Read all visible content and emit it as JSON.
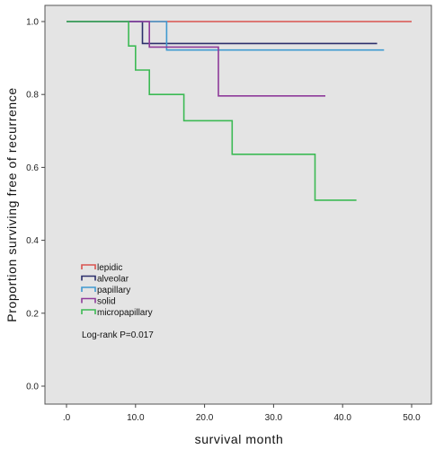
{
  "chart_data": {
    "type": "line",
    "subtype": "kaplan-meier step survival",
    "xlabel": "survival month",
    "ylabel": "Proportion surviving free of recurrence",
    "xlim": [
      0,
      50
    ],
    "ylim": [
      0,
      1.0
    ],
    "x_ticks": [
      ".0",
      "10.0",
      "20.0",
      "30.0",
      "40.0",
      "50.0"
    ],
    "y_ticks": [
      "0.0",
      "0.2",
      "0.4",
      "0.6",
      "0.8",
      "1.0"
    ],
    "grid": false,
    "legend_position": "lower-left",
    "background_color": "#e4e4e4",
    "series": [
      {
        "name": "lepidic",
        "color": "#d9534f",
        "points": [
          [
            0,
            1.0
          ],
          [
            50,
            1.0
          ]
        ]
      },
      {
        "name": "alveolar",
        "color": "#2c2f6b",
        "points": [
          [
            0,
            1.0
          ],
          [
            11,
            1.0
          ],
          [
            11,
            0.94
          ],
          [
            45,
            0.94
          ]
        ]
      },
      {
        "name": "papillary",
        "color": "#3f9ad0",
        "points": [
          [
            0,
            1.0
          ],
          [
            14.5,
            1.0
          ],
          [
            14.5,
            0.922
          ],
          [
            46,
            0.922
          ]
        ]
      },
      {
        "name": "solid",
        "color": "#8e3a9a",
        "points": [
          [
            0,
            1.0
          ],
          [
            12,
            1.0
          ],
          [
            12,
            0.93
          ],
          [
            22,
            0.93
          ],
          [
            22,
            0.796
          ],
          [
            37.5,
            0.796
          ]
        ]
      },
      {
        "name": "micropapillary",
        "color": "#3cba54",
        "points": [
          [
            0,
            1.0
          ],
          [
            9,
            1.0
          ],
          [
            9,
            0.933
          ],
          [
            10,
            0.933
          ],
          [
            10,
            0.867
          ],
          [
            12,
            0.867
          ],
          [
            12,
            0.8
          ],
          [
            17,
            0.8
          ],
          [
            17,
            0.728
          ],
          [
            24,
            0.728
          ],
          [
            24,
            0.636
          ],
          [
            36,
            0.636
          ],
          [
            36,
            0.51
          ],
          [
            42,
            0.51
          ]
        ]
      }
    ],
    "annotation": "Log-rank P=0.017"
  }
}
